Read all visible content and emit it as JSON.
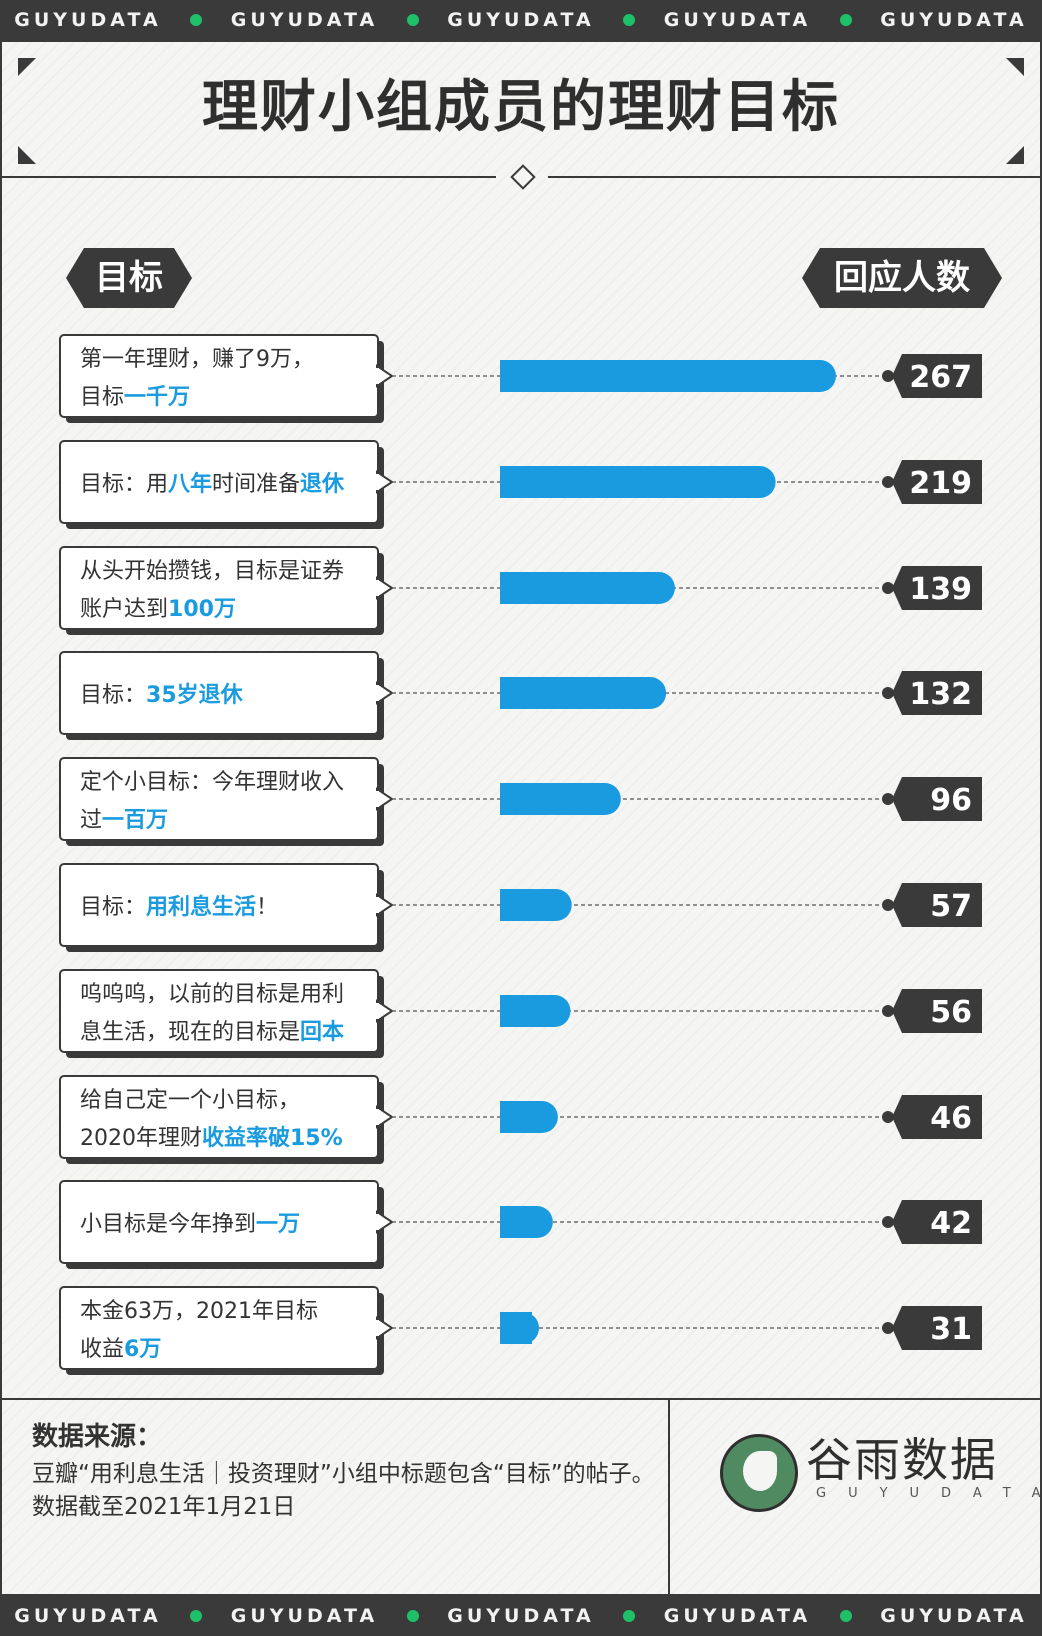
{
  "banner": {
    "word": "GUYUDATA",
    "repeat": 5
  },
  "title": "理财小组成员的理财目标",
  "headers": {
    "left": "目标",
    "right": "回应人数"
  },
  "colors": {
    "bar": "#1a9be0",
    "dark": "#3a3a3a",
    "highlight": "#1a9be0",
    "accent_green": "#1ec06a"
  },
  "chart_data": {
    "type": "bar",
    "orientation": "horizontal",
    "xlim": [
      0,
      267
    ],
    "categories": [
      [
        [
          {
            "t": "第一年理财，赚了9万，",
            "h": false
          }
        ],
        [
          {
            "t": "目标",
            "h": false
          },
          {
            "t": "一千万",
            "h": true
          }
        ]
      ],
      [
        [
          {
            "t": "目标：用",
            "h": false
          },
          {
            "t": "八年",
            "h": true
          },
          {
            "t": "时间准备",
            "h": false
          },
          {
            "t": "退休",
            "h": true
          }
        ]
      ],
      [
        [
          {
            "t": "从头开始攒钱，目标是证券",
            "h": false
          }
        ],
        [
          {
            "t": "账户达到",
            "h": false
          },
          {
            "t": "100万",
            "h": true
          }
        ]
      ],
      [
        [
          {
            "t": "目标：",
            "h": false
          },
          {
            "t": "35岁退休",
            "h": true
          }
        ]
      ],
      [
        [
          {
            "t": "定个小目标：今年理财收入",
            "h": false
          }
        ],
        [
          {
            "t": "过",
            "h": false
          },
          {
            "t": "一百万",
            "h": true
          }
        ]
      ],
      [
        [
          {
            "t": "目标：",
            "h": false
          },
          {
            "t": "用利息生活",
            "h": true
          },
          {
            "t": "！",
            "h": false
          }
        ]
      ],
      [
        [
          {
            "t": "呜呜呜，以前的目标是用利",
            "h": false
          }
        ],
        [
          {
            "t": "息生活，现在的目标是",
            "h": false
          },
          {
            "t": "回本",
            "h": true
          }
        ]
      ],
      [
        [
          {
            "t": "给自己定一个小目标，",
            "h": false
          }
        ],
        [
          {
            "t": "2020年理财",
            "h": false
          },
          {
            "t": "收益率破15%",
            "h": true
          }
        ]
      ],
      [
        [
          {
            "t": "小目标是今年挣到",
            "h": false
          },
          {
            "t": "一万",
            "h": true
          }
        ]
      ],
      [
        [
          {
            "t": "本金63万，2021年目标",
            "h": false
          }
        ],
        [
          {
            "t": "收益",
            "h": false
          },
          {
            "t": "6万",
            "h": true
          }
        ]
      ]
    ],
    "values": [
      267,
      219,
      139,
      132,
      96,
      57,
      56,
      46,
      42,
      31
    ]
  },
  "source": {
    "title": "数据来源：",
    "text": "豆瓣“用利息生活｜投资理财”小组中标题包含“目标”的帖子。数据截至2021年1月21日"
  },
  "logo": {
    "name": "谷雨数据",
    "sub": "GUYUDATA",
    "icon": "sparrow-logo-icon"
  }
}
